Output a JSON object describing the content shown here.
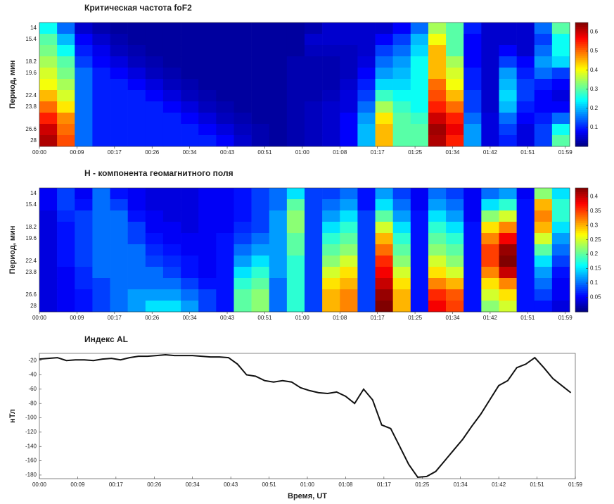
{
  "chart_data": [
    {
      "type": "heatmap",
      "title": "Критическая частота foF2",
      "ylabel": "Период, мин",
      "colormap": "jet",
      "x": [
        2,
        6,
        10,
        14,
        18,
        22,
        26,
        30,
        34,
        38,
        42,
        46,
        50,
        54,
        58,
        62,
        66,
        70,
        74,
        78,
        82,
        86,
        90,
        94,
        98,
        102,
        106,
        110,
        114,
        118
      ],
      "xlim": [
        0,
        120
      ],
      "xticks": [
        {
          "value": 0,
          "label": "00:00"
        },
        {
          "value": 8.5,
          "label": "00:09"
        },
        {
          "value": 17,
          "label": "00:17"
        },
        {
          "value": 25.5,
          "label": "00:26"
        },
        {
          "value": 34,
          "label": "00:34"
        },
        {
          "value": 42.5,
          "label": "00:43"
        },
        {
          "value": 51,
          "label": "00:51"
        },
        {
          "value": 59.5,
          "label": "01:00"
        },
        {
          "value": 68,
          "label": "01:08"
        },
        {
          "value": 76.5,
          "label": "01:17"
        },
        {
          "value": 85,
          "label": "01:25"
        },
        {
          "value": 93.5,
          "label": "01:34"
        },
        {
          "value": 102,
          "label": "01:42"
        },
        {
          "value": 110.5,
          "label": "01:51"
        },
        {
          "value": 119,
          "label": "01:59"
        }
      ],
      "categories": [
        "14",
        "15.4",
        null,
        "18.2",
        "19.6",
        null,
        "22.4",
        "23.8",
        null,
        "26.6",
        "28"
      ],
      "zlim": [
        0,
        0.65
      ],
      "zticks": [
        0.1,
        0.2,
        0.3,
        0.4,
        0.5,
        0.6
      ],
      "values": [
        [
          0.25,
          0.15,
          0.05,
          0.03,
          0.02,
          0.02,
          0.02,
          0.02,
          0.02,
          0.02,
          0.02,
          0.02,
          0.02,
          0.02,
          0.02,
          0.03,
          0.05,
          0.05,
          0.05,
          0.05,
          0.08,
          0.15,
          0.35,
          0.3,
          0.1,
          0.05,
          0.05,
          0.05,
          0.15,
          0.3
        ],
        [
          0.3,
          0.2,
          0.08,
          0.05,
          0.03,
          0.02,
          0.02,
          0.02,
          0.02,
          0.02,
          0.02,
          0.02,
          0.02,
          0.02,
          0.02,
          0.05,
          0.05,
          0.05,
          0.05,
          0.08,
          0.12,
          0.2,
          0.4,
          0.3,
          0.08,
          0.05,
          0.05,
          0.05,
          0.12,
          0.25
        ],
        [
          0.32,
          0.25,
          0.1,
          0.07,
          0.04,
          0.03,
          0.02,
          0.02,
          0.02,
          0.02,
          0.02,
          0.02,
          0.02,
          0.02,
          0.02,
          0.04,
          0.04,
          0.04,
          0.05,
          0.12,
          0.15,
          0.22,
          0.45,
          0.3,
          0.08,
          0.05,
          0.08,
          0.05,
          0.15,
          0.25
        ],
        [
          0.35,
          0.3,
          0.12,
          0.08,
          0.06,
          0.04,
          0.03,
          0.02,
          0.02,
          0.02,
          0.02,
          0.02,
          0.02,
          0.02,
          0.03,
          0.03,
          0.03,
          0.04,
          0.06,
          0.15,
          0.18,
          0.25,
          0.45,
          0.35,
          0.08,
          0.05,
          0.12,
          0.08,
          0.18,
          0.22
        ],
        [
          0.38,
          0.32,
          0.15,
          0.1,
          0.08,
          0.06,
          0.04,
          0.03,
          0.02,
          0.02,
          0.02,
          0.02,
          0.02,
          0.02,
          0.03,
          0.03,
          0.03,
          0.04,
          0.08,
          0.18,
          0.2,
          0.25,
          0.45,
          0.38,
          0.1,
          0.05,
          0.18,
          0.1,
          0.15,
          0.12
        ],
        [
          0.4,
          0.35,
          0.15,
          0.1,
          0.1,
          0.08,
          0.06,
          0.04,
          0.03,
          0.02,
          0.02,
          0.02,
          0.02,
          0.02,
          0.03,
          0.03,
          0.03,
          0.05,
          0.1,
          0.22,
          0.22,
          0.25,
          0.5,
          0.4,
          0.1,
          0.05,
          0.2,
          0.12,
          0.1,
          0.08
        ],
        [
          0.45,
          0.38,
          0.15,
          0.1,
          0.1,
          0.1,
          0.08,
          0.06,
          0.04,
          0.03,
          0.02,
          0.02,
          0.02,
          0.02,
          0.03,
          0.03,
          0.04,
          0.06,
          0.12,
          0.28,
          0.25,
          0.25,
          0.52,
          0.45,
          0.12,
          0.05,
          0.22,
          0.12,
          0.08,
          0.06
        ],
        [
          0.5,
          0.42,
          0.15,
          0.1,
          0.1,
          0.1,
          0.1,
          0.08,
          0.06,
          0.04,
          0.03,
          0.02,
          0.02,
          0.02,
          0.03,
          0.04,
          0.05,
          0.06,
          0.15,
          0.35,
          0.28,
          0.25,
          0.55,
          0.5,
          0.12,
          0.05,
          0.2,
          0.1,
          0.08,
          0.08
        ],
        [
          0.55,
          0.48,
          0.15,
          0.1,
          0.1,
          0.1,
          0.1,
          0.1,
          0.08,
          0.06,
          0.04,
          0.03,
          0.02,
          0.02,
          0.03,
          0.04,
          0.05,
          0.08,
          0.18,
          0.42,
          0.3,
          0.28,
          0.6,
          0.55,
          0.15,
          0.06,
          0.15,
          0.08,
          0.1,
          0.15
        ],
        [
          0.6,
          0.5,
          0.15,
          0.1,
          0.1,
          0.1,
          0.1,
          0.1,
          0.1,
          0.08,
          0.06,
          0.04,
          0.03,
          0.02,
          0.03,
          0.04,
          0.05,
          0.08,
          0.2,
          0.45,
          0.3,
          0.3,
          0.63,
          0.58,
          0.18,
          0.06,
          0.12,
          0.06,
          0.12,
          0.25
        ],
        [
          0.62,
          0.52,
          0.15,
          0.1,
          0.1,
          0.1,
          0.1,
          0.1,
          0.1,
          0.1,
          0.08,
          0.05,
          0.03,
          0.02,
          0.03,
          0.04,
          0.05,
          0.08,
          0.2,
          0.45,
          0.3,
          0.3,
          0.62,
          0.55,
          0.18,
          0.06,
          0.1,
          0.06,
          0.12,
          0.3
        ]
      ]
    },
    {
      "type": "heatmap",
      "title": "Н - компонента геомагнитного поля",
      "ylabel": "Период, мин",
      "colormap": "jet",
      "x": [
        2,
        6,
        10,
        14,
        18,
        22,
        26,
        30,
        34,
        38,
        42,
        46,
        50,
        54,
        58,
        62,
        66,
        70,
        74,
        78,
        82,
        86,
        90,
        94,
        98,
        102,
        106,
        110,
        114,
        118
      ],
      "xlim": [
        0,
        120
      ],
      "xticks": [
        {
          "value": 0,
          "label": "00:00"
        },
        {
          "value": 8.5,
          "label": "00:09"
        },
        {
          "value": 17,
          "label": "00:17"
        },
        {
          "value": 25.5,
          "label": "00:26"
        },
        {
          "value": 34,
          "label": "00:34"
        },
        {
          "value": 42.5,
          "label": "00:43"
        },
        {
          "value": 51,
          "label": "00:51"
        },
        {
          "value": 59.5,
          "label": "01:00"
        },
        {
          "value": 68,
          "label": "01:08"
        },
        {
          "value": 76.5,
          "label": "01:17"
        },
        {
          "value": 85,
          "label": "01:25"
        },
        {
          "value": 93.5,
          "label": "01:34"
        },
        {
          "value": 102,
          "label": "01:42"
        },
        {
          "value": 110.5,
          "label": "01:51"
        },
        {
          "value": 119,
          "label": "01:59"
        }
      ],
      "categories": [
        "14",
        "15.4",
        null,
        "18.2",
        "19.6",
        null,
        "22.4",
        "23.8",
        null,
        "26.6",
        "28"
      ],
      "zlim": [
        0,
        0.43
      ],
      "zticks": [
        0.05,
        0.1,
        0.15,
        0.2,
        0.25,
        0.3,
        0.35,
        0.4
      ],
      "values": [
        [
          0.05,
          0.08,
          0.05,
          0.1,
          0.06,
          0.05,
          0.04,
          0.04,
          0.04,
          0.05,
          0.05,
          0.06,
          0.08,
          0.1,
          0.15,
          0.08,
          0.08,
          0.1,
          0.06,
          0.12,
          0.08,
          0.05,
          0.1,
          0.08,
          0.05,
          0.1,
          0.12,
          0.05,
          0.22,
          0.15
        ],
        [
          0.05,
          0.08,
          0.06,
          0.1,
          0.08,
          0.05,
          0.04,
          0.04,
          0.04,
          0.05,
          0.05,
          0.06,
          0.08,
          0.1,
          0.2,
          0.08,
          0.1,
          0.12,
          0.06,
          0.15,
          0.1,
          0.05,
          0.12,
          0.1,
          0.05,
          0.15,
          0.18,
          0.06,
          0.3,
          0.18
        ],
        [
          0.04,
          0.07,
          0.08,
          0.1,
          0.1,
          0.06,
          0.05,
          0.04,
          0.04,
          0.05,
          0.05,
          0.06,
          0.08,
          0.12,
          0.22,
          0.08,
          0.12,
          0.15,
          0.08,
          0.2,
          0.12,
          0.06,
          0.15,
          0.12,
          0.05,
          0.22,
          0.25,
          0.06,
          0.32,
          0.18
        ],
        [
          0.04,
          0.06,
          0.08,
          0.1,
          0.1,
          0.08,
          0.05,
          0.05,
          0.04,
          0.05,
          0.05,
          0.07,
          0.08,
          0.12,
          0.22,
          0.08,
          0.15,
          0.18,
          0.08,
          0.25,
          0.15,
          0.06,
          0.18,
          0.15,
          0.06,
          0.28,
          0.32,
          0.06,
          0.3,
          0.15
        ],
        [
          0.04,
          0.06,
          0.08,
          0.1,
          0.1,
          0.08,
          0.06,
          0.05,
          0.05,
          0.05,
          0.06,
          0.08,
          0.1,
          0.12,
          0.2,
          0.08,
          0.18,
          0.2,
          0.08,
          0.3,
          0.18,
          0.06,
          0.2,
          0.18,
          0.06,
          0.32,
          0.38,
          0.06,
          0.25,
          0.12
        ],
        [
          0.04,
          0.06,
          0.08,
          0.1,
          0.1,
          0.1,
          0.07,
          0.06,
          0.05,
          0.05,
          0.06,
          0.1,
          0.12,
          0.12,
          0.2,
          0.08,
          0.2,
          0.22,
          0.08,
          0.33,
          0.2,
          0.06,
          0.22,
          0.2,
          0.06,
          0.35,
          0.42,
          0.06,
          0.2,
          0.1
        ],
        [
          0.04,
          0.06,
          0.08,
          0.1,
          0.1,
          0.1,
          0.08,
          0.07,
          0.06,
          0.05,
          0.06,
          0.12,
          0.15,
          0.12,
          0.18,
          0.08,
          0.22,
          0.25,
          0.08,
          0.36,
          0.22,
          0.06,
          0.25,
          0.22,
          0.06,
          0.35,
          0.43,
          0.06,
          0.15,
          0.08
        ],
        [
          0.04,
          0.05,
          0.07,
          0.1,
          0.1,
          0.1,
          0.1,
          0.08,
          0.06,
          0.05,
          0.06,
          0.15,
          0.18,
          0.12,
          0.18,
          0.08,
          0.25,
          0.28,
          0.08,
          0.38,
          0.25,
          0.06,
          0.28,
          0.25,
          0.06,
          0.32,
          0.4,
          0.06,
          0.12,
          0.06
        ],
        [
          0.04,
          0.05,
          0.07,
          0.08,
          0.1,
          0.1,
          0.1,
          0.1,
          0.08,
          0.06,
          0.06,
          0.18,
          0.2,
          0.1,
          0.18,
          0.08,
          0.28,
          0.3,
          0.08,
          0.4,
          0.28,
          0.06,
          0.32,
          0.3,
          0.06,
          0.28,
          0.32,
          0.06,
          0.1,
          0.05
        ],
        [
          0.04,
          0.05,
          0.06,
          0.08,
          0.1,
          0.12,
          0.12,
          0.12,
          0.1,
          0.08,
          0.06,
          0.2,
          0.22,
          0.1,
          0.18,
          0.08,
          0.3,
          0.32,
          0.08,
          0.42,
          0.3,
          0.06,
          0.36,
          0.34,
          0.06,
          0.25,
          0.28,
          0.06,
          0.08,
          0.05
        ],
        [
          0.04,
          0.05,
          0.06,
          0.08,
          0.1,
          0.12,
          0.15,
          0.15,
          0.12,
          0.08,
          0.06,
          0.2,
          0.22,
          0.1,
          0.18,
          0.08,
          0.3,
          0.32,
          0.08,
          0.43,
          0.3,
          0.06,
          0.38,
          0.35,
          0.06,
          0.22,
          0.25,
          0.06,
          0.06,
          0.04
        ]
      ]
    },
    {
      "type": "line",
      "title": "Индекс AL",
      "xlabel": "Время, UT",
      "ylabel": "нТл",
      "color": "#111111",
      "x": [
        0,
        2,
        4,
        6,
        8,
        10,
        12,
        14,
        16,
        18,
        20,
        22,
        24,
        26,
        28,
        30,
        32,
        34,
        36,
        38,
        40,
        42,
        44,
        46,
        48,
        50,
        52,
        54,
        56,
        58,
        60,
        62,
        64,
        66,
        68,
        70,
        72,
        74,
        76,
        78,
        80,
        82,
        84,
        86,
        88,
        90,
        92,
        94,
        96,
        98,
        100,
        102,
        104,
        106,
        108,
        110,
        112,
        114,
        116,
        118
      ],
      "values": [
        -18,
        -17,
        -16,
        -20,
        -19,
        -19,
        -20,
        -18,
        -17,
        -19,
        -16,
        -14,
        -14,
        -13,
        -12,
        -13,
        -13,
        -13,
        -14,
        -15,
        -15,
        -16,
        -25,
        -40,
        -42,
        -48,
        -50,
        -48,
        -50,
        -58,
        -62,
        -65,
        -66,
        -64,
        -70,
        -80,
        -60,
        -75,
        -110,
        -115,
        -140,
        -165,
        -183,
        -182,
        -175,
        -160,
        -145,
        -130,
        -112,
        -95,
        -75,
        -55,
        -48,
        -30,
        -25,
        -16,
        -30,
        -45,
        -55,
        -65
      ],
      "xlim": [
        0,
        119
      ],
      "xticks": [
        {
          "value": 0,
          "label": "00:00"
        },
        {
          "value": 8.5,
          "label": "00:09"
        },
        {
          "value": 17,
          "label": "00:17"
        },
        {
          "value": 25.5,
          "label": "00:26"
        },
        {
          "value": 34,
          "label": "00:34"
        },
        {
          "value": 42.5,
          "label": "00:43"
        },
        {
          "value": 51,
          "label": "00:51"
        },
        {
          "value": 59.5,
          "label": "01:00"
        },
        {
          "value": 68,
          "label": "01:08"
        },
        {
          "value": 76.5,
          "label": "01:17"
        },
        {
          "value": 85,
          "label": "01:25"
        },
        {
          "value": 93.5,
          "label": "01:34"
        },
        {
          "value": 102,
          "label": "01:42"
        },
        {
          "value": 110.5,
          "label": "01:51"
        },
        {
          "value": 119,
          "label": "01:59"
        }
      ],
      "ylim": [
        -185,
        -10
      ],
      "yticks": [
        -20,
        -40,
        -60,
        -80,
        -100,
        -120,
        -140,
        -160,
        -180
      ]
    }
  ]
}
